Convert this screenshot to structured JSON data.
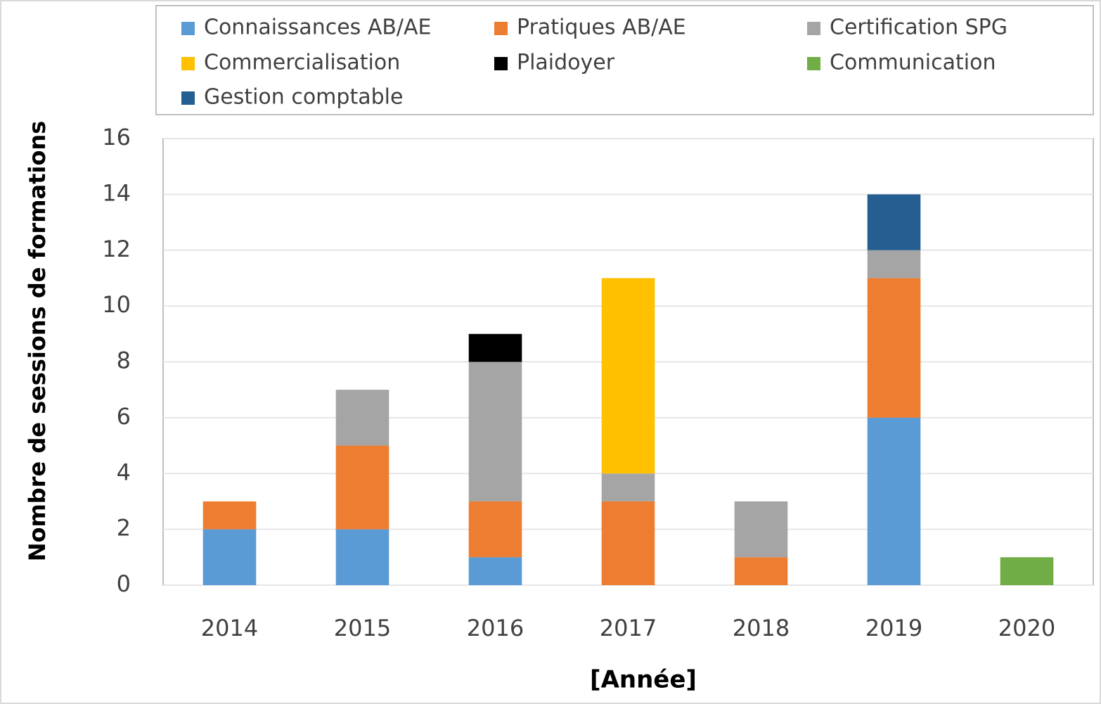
{
  "chart_data": {
    "type": "stacked_bar",
    "y_label": "Nombre de sessions de formations",
    "x_label": "[Année]",
    "categories": [
      "2014",
      "2015",
      "2016",
      "2017",
      "2018",
      "2019",
      "2020"
    ],
    "series": [
      {
        "name": "Connaissances AB/AE",
        "color": "#5b9bd5",
        "values": [
          2,
          2,
          1,
          0,
          0,
          6,
          0
        ]
      },
      {
        "name": "Pratiques AB/AE",
        "color": "#ed7d31",
        "values": [
          1,
          3,
          2,
          3,
          1,
          5,
          0
        ]
      },
      {
        "name": "Certification SPG",
        "color": "#a5a5a5",
        "values": [
          0,
          2,
          5,
          1,
          2,
          1,
          0
        ]
      },
      {
        "name": "Commercialisation",
        "color": "#ffc000",
        "values": [
          0,
          0,
          0,
          7,
          0,
          0,
          0
        ]
      },
      {
        "name": "Plaidoyer",
        "color": "#000000",
        "values": [
          0,
          0,
          1,
          0,
          0,
          0,
          0
        ]
      },
      {
        "name": "Communication",
        "color": "#70ad47",
        "values": [
          0,
          0,
          0,
          0,
          0,
          0,
          1
        ]
      },
      {
        "name": "Gestion comptable",
        "color": "#255e91",
        "values": [
          0,
          0,
          0,
          0,
          0,
          2,
          0
        ]
      }
    ],
    "ylim": [
      0,
      16
    ],
    "yticks": [
      0,
      2,
      4,
      6,
      8,
      10,
      12,
      14,
      16
    ],
    "grid": true,
    "legend": "top"
  }
}
